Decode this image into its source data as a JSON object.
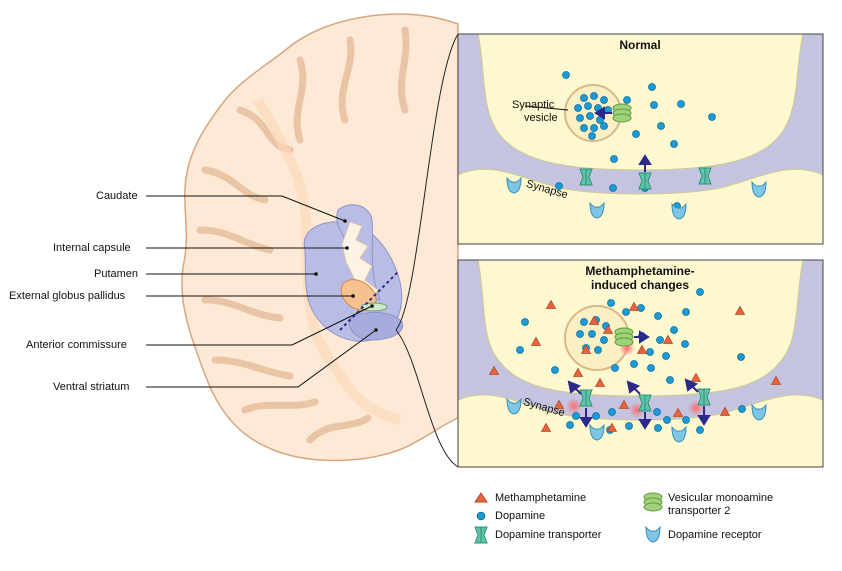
{
  "brain_labels": [
    {
      "id": "caudate",
      "text": "Caudate"
    },
    {
      "id": "internal-capsule",
      "text": "Internal capsule"
    },
    {
      "id": "putamen",
      "text": "Putamen"
    },
    {
      "id": "external-globus-pallidus",
      "text": "External globus pallidus"
    },
    {
      "id": "anterior-commissure",
      "text": "Anterior commissure"
    },
    {
      "id": "ventral-striatum",
      "text": "Ventral striatum"
    }
  ],
  "panels": {
    "normal": {
      "title": "Normal",
      "vesicle_label_line1": "Synaptic",
      "vesicle_label_line2": "vesicle",
      "synapse_label": "Synapse"
    },
    "meth": {
      "title_line1": "Methamphetamine-",
      "title_line2": "induced changes",
      "synapse_label": "Synapse"
    }
  },
  "legend": {
    "methamphetamine": "Methamphetamine",
    "dopamine": "Dopamine",
    "dopamine_transporter": "Dopamine transporter",
    "vmat2_line1": "Vesicular monoamine",
    "vmat2_line2": "transporter 2",
    "dopamine_receptor": "Dopamine receptor"
  },
  "colors": {
    "brain_fill": "#fde9d5",
    "brain_outline": "#d9a67f",
    "striatum_fill": "#b9bde6",
    "pallidus_fill": "#f6c08f",
    "cytoplasm": "#fdf8d0",
    "cleft": "#c4c4e0",
    "dopamine": "#1b9ad6",
    "methamphetamine": "#e8643c",
    "transporter": "#5fc3a8",
    "vmat2": "#9fd27a",
    "receptor": "#7dc6e6",
    "arrow": "#2b2a8c"
  }
}
